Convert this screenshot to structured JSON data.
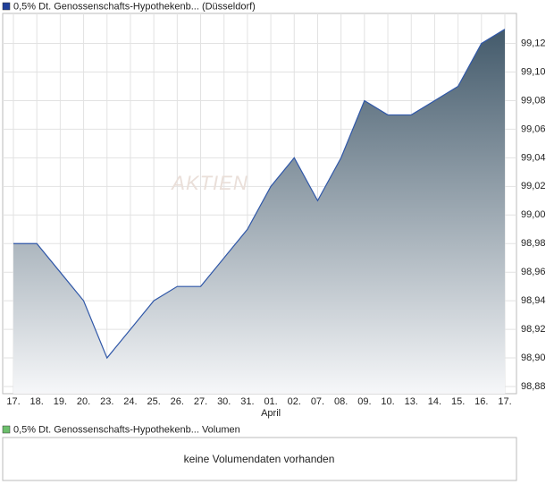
{
  "chart_data": {
    "type": "area",
    "title": "0,5% Dt. Genossenschafts-Hypothekenb... (Düsseldorf)",
    "watermark": "AKTIEN",
    "categories": [
      "17.",
      "18.",
      "19.",
      "20.",
      "23.",
      "24.",
      "25.",
      "26.",
      "27.",
      "30.",
      "31.",
      "01.",
      "02.",
      "07.",
      "08.",
      "09.",
      "10.",
      "13.",
      "14.",
      "15.",
      "16.",
      "17."
    ],
    "x_sublabels": [
      null,
      null,
      null,
      null,
      null,
      null,
      null,
      null,
      null,
      null,
      null,
      "April",
      null,
      null,
      null,
      null,
      null,
      null,
      null,
      null,
      null,
      null
    ],
    "series": [
      {
        "name": "0,5% Dt. Genossenschafts-Hypothekenb... (Düsseldorf)",
        "color": "#2f57a8",
        "values": [
          98.98,
          98.98,
          98.96,
          98.94,
          98.9,
          98.92,
          98.94,
          98.95,
          98.95,
          98.97,
          98.99,
          99.02,
          99.04,
          99.01,
          99.04,
          99.08,
          99.07,
          99.07,
          99.08,
          99.09,
          99.12,
          99.13
        ]
      }
    ],
    "fill_gradient": [
      "#435a6b",
      "#f6f7f9"
    ],
    "legend_color": "#1f3f99",
    "ylim": [
      98.875,
      99.141
    ],
    "yticks": [
      {
        "value": 98.88,
        "label": "98,88"
      },
      {
        "value": 98.9,
        "label": "98,90"
      },
      {
        "value": 98.92,
        "label": "98,92"
      },
      {
        "value": 98.94,
        "label": "98,94"
      },
      {
        "value": 98.96,
        "label": "98,96"
      },
      {
        "value": 98.98,
        "label": "98,98"
      },
      {
        "value": 99.0,
        "label": "99,00"
      },
      {
        "value": 99.02,
        "label": "99,02"
      },
      {
        "value": 99.04,
        "label": "99,04"
      },
      {
        "value": 99.06,
        "label": "99,06"
      },
      {
        "value": 99.08,
        "label": "99,08"
      },
      {
        "value": 99.1,
        "label": "99,10"
      },
      {
        "value": 99.12,
        "label": "99,12"
      }
    ],
    "grid": true
  },
  "volume_panel": {
    "title": "0,5% Dt. Genossenschafts-Hypothekenb... Volumen",
    "legend_color": "#6cbf6c",
    "message": "keine Volumendaten vorhanden"
  }
}
